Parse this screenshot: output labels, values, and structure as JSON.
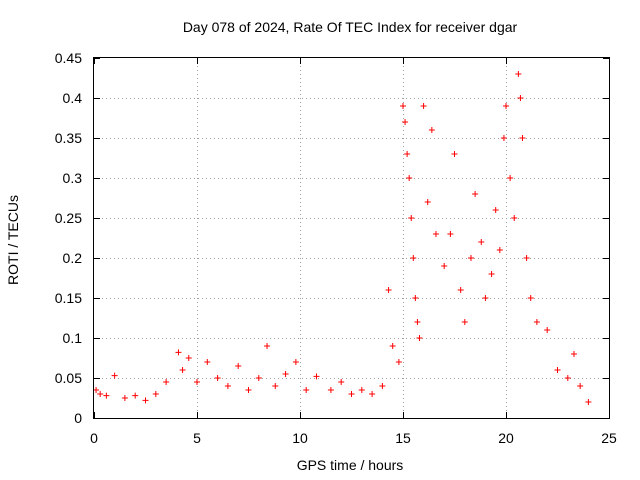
{
  "chart_data": {
    "type": "scatter",
    "title": "Day 078 of 2024, Rate Of TEC Index for receiver dgar",
    "xlabel": "GPS time / hours",
    "ylabel": "ROTI / TECUs",
    "xlim": [
      0,
      25
    ],
    "ylim": [
      0,
      0.45
    ],
    "xticks": [
      0,
      5,
      10,
      15,
      20,
      25
    ],
    "xtick_labels": [
      "0",
      "5",
      "10",
      "15",
      "20",
      "25"
    ],
    "yticks": [
      0,
      0.05,
      0.1,
      0.15,
      0.2,
      0.25,
      0.3,
      0.35,
      0.4,
      0.45
    ],
    "ytick_labels": [
      "0",
      "0.05",
      "0.1",
      "0.15",
      "0.2",
      "0.25",
      "0.3",
      "0.35",
      "0.4",
      "0.45"
    ],
    "grid": true,
    "marker": "plus",
    "color": "#ff0000",
    "series": [
      {
        "name": "ROTI",
        "points": [
          [
            0.1,
            0.035
          ],
          [
            0.3,
            0.03
          ],
          [
            0.6,
            0.028
          ],
          [
            1.0,
            0.053
          ],
          [
            1.5,
            0.025
          ],
          [
            2.0,
            0.028
          ],
          [
            2.5,
            0.022
          ],
          [
            3.0,
            0.03
          ],
          [
            3.5,
            0.045
          ],
          [
            4.1,
            0.082
          ],
          [
            4.3,
            0.06
          ],
          [
            4.6,
            0.075
          ],
          [
            5.0,
            0.045
          ],
          [
            5.5,
            0.07
          ],
          [
            6.0,
            0.05
          ],
          [
            6.5,
            0.04
          ],
          [
            7.0,
            0.065
          ],
          [
            7.5,
            0.035
          ],
          [
            8.0,
            0.05
          ],
          [
            8.4,
            0.09
          ],
          [
            8.8,
            0.04
          ],
          [
            9.3,
            0.055
          ],
          [
            9.8,
            0.07
          ],
          [
            10.3,
            0.035
          ],
          [
            10.8,
            0.052
          ],
          [
            11.5,
            0.035
          ],
          [
            12.0,
            0.045
          ],
          [
            12.5,
            0.03
          ],
          [
            13.0,
            0.035
          ],
          [
            13.5,
            0.03
          ],
          [
            14.0,
            0.04
          ],
          [
            14.3,
            0.16
          ],
          [
            14.5,
            0.09
          ],
          [
            14.8,
            0.07
          ],
          [
            15.0,
            0.39
          ],
          [
            15.1,
            0.37
          ],
          [
            15.2,
            0.33
          ],
          [
            15.3,
            0.3
          ],
          [
            15.4,
            0.25
          ],
          [
            15.5,
            0.2
          ],
          [
            15.6,
            0.15
          ],
          [
            15.7,
            0.12
          ],
          [
            15.8,
            0.1
          ],
          [
            16.0,
            0.39
          ],
          [
            16.2,
            0.27
          ],
          [
            16.4,
            0.36
          ],
          [
            16.6,
            0.23
          ],
          [
            17.0,
            0.19
          ],
          [
            17.3,
            0.23
          ],
          [
            17.5,
            0.33
          ],
          [
            17.8,
            0.16
          ],
          [
            18.0,
            0.12
          ],
          [
            18.3,
            0.2
          ],
          [
            18.5,
            0.28
          ],
          [
            18.8,
            0.22
          ],
          [
            19.0,
            0.15
          ],
          [
            19.3,
            0.18
          ],
          [
            19.5,
            0.26
          ],
          [
            19.7,
            0.21
          ],
          [
            19.9,
            0.35
          ],
          [
            20.0,
            0.39
          ],
          [
            20.2,
            0.3
          ],
          [
            20.4,
            0.25
          ],
          [
            20.6,
            0.43
          ],
          [
            20.7,
            0.4
          ],
          [
            20.8,
            0.35
          ],
          [
            21.0,
            0.2
          ],
          [
            21.2,
            0.15
          ],
          [
            21.5,
            0.12
          ],
          [
            22.0,
            0.11
          ],
          [
            22.5,
            0.06
          ],
          [
            23.0,
            0.05
          ],
          [
            23.3,
            0.08
          ],
          [
            23.6,
            0.04
          ],
          [
            24.0,
            0.02
          ]
        ]
      }
    ]
  }
}
